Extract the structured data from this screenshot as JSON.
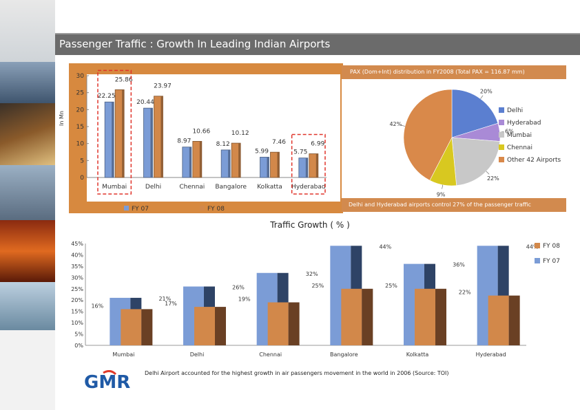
{
  "slide": {
    "title": "Passenger Traffic : Growth In Leading Indian Airports",
    "logo_text": "GMR"
  },
  "colors": {
    "header_gray": "#6b6b6b",
    "fy07_blue": "#7b9cd6",
    "fy08_orange": "#d2884a",
    "bar_panel_orange": "#d7893f",
    "pie_header_orange": "#d28a4e",
    "highlight_red": "#e0342a",
    "logo_blue": "#1f5aa6",
    "logo_red": "#e03a2a"
  },
  "pie_panel": {
    "header": "PAX (Dom+Int) distribution in FY2008 (Total PAX = 116.87 mm)",
    "footer": "Delhi and Hyderabad airports control 27% of the passenger traffic"
  },
  "growth_panel": {
    "title": "Traffic Growth ( % )",
    "note": "Delhi Airport accounted for the highest growth in air passengers movement in the world in 2006 (Source: TOI)"
  },
  "chart_data": [
    {
      "type": "bar",
      "categories": [
        "Mumbai",
        "Delhi",
        "Chennai",
        "Bangalore",
        "Kolkatta",
        "Hyderabad"
      ],
      "series": [
        {
          "name": "FY 07",
          "values": [
            22.25,
            20.44,
            8.97,
            8.12,
            5.99,
            5.75
          ],
          "color": "#7b9cd6"
        },
        {
          "name": "FY 08",
          "values": [
            25.86,
            23.97,
            10.66,
            10.12,
            7.46,
            6.99
          ],
          "color": "#d2884a"
        }
      ],
      "data_labels": [
        {
          "text": "22.25"
        },
        {
          "text": "25.86"
        },
        {
          "text": "20.44"
        },
        {
          "text": "23.97"
        },
        {
          "text": "8.97"
        },
        {
          "text": "10.66"
        },
        {
          "text": "8.12"
        },
        {
          "text": "10.12"
        },
        {
          "text": "5.99"
        },
        {
          "text": "7.46"
        },
        {
          "text": "5.75"
        },
        {
          "text": "6.99"
        }
      ],
      "ylabel": "In Mn",
      "yticks": [
        "0",
        "5",
        "10",
        "15",
        "20",
        "25",
        "30"
      ],
      "ylim": [
        0,
        30
      ],
      "legend": "bottom",
      "highlighted_categories": [
        "Mumbai",
        "Hyderabad"
      ]
    },
    {
      "type": "pie",
      "slices": [
        {
          "name": "Delhi",
          "value": 20,
          "label": "20%",
          "color": "#5b7fd0"
        },
        {
          "name": "Hyderabad",
          "value": 6,
          "label": "6%",
          "color": "#a98ad6"
        },
        {
          "name": "Mumbai",
          "value": 22,
          "label": "22%",
          "color": "#c8c8c8"
        },
        {
          "name": "Chennai",
          "value": 9,
          "label": "9%",
          "color": "#d8c820"
        },
        {
          "name": "Other 42 Airports",
          "value": 42,
          "label": "42%",
          "color": "#d9894a"
        }
      ],
      "legend": "right"
    },
    {
      "type": "bar",
      "categories": [
        "Mumbai",
        "Delhi",
        "Chennai",
        "Bangalore",
        "Kolkatta",
        "Hyderabad"
      ],
      "series": [
        {
          "name": "FY 08",
          "values": [
            16,
            17,
            19,
            25,
            25,
            22
          ],
          "labels": [
            "16%",
            "17%",
            "19%",
            "25%",
            "25%",
            "22%"
          ],
          "color": "#d2884a"
        },
        {
          "name": "FY 07",
          "values": [
            21,
            26,
            32,
            44,
            36,
            44
          ],
          "labels": [
            "21%",
            "26%",
            "32%",
            "44%",
            "36%",
            "44%"
          ],
          "color": "#7b9cd6"
        }
      ],
      "yticks": [
        "0%",
        "5%",
        "10%",
        "15%",
        "20%",
        "25%",
        "30%",
        "35%",
        "40%",
        "45%"
      ],
      "ylim": [
        0,
        45
      ],
      "legend": "right"
    }
  ]
}
